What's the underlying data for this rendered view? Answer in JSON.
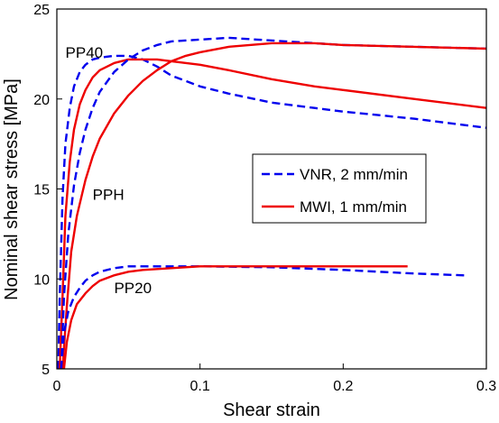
{
  "chart_data": {
    "type": "line",
    "title": "",
    "xlabel": "Shear strain",
    "ylabel": "Nominal shear stress [MPa]",
    "xlim": [
      0,
      0.3
    ],
    "ylim": [
      5,
      25
    ],
    "xticks": [
      0,
      0.1,
      0.2,
      0.3
    ],
    "xtick_labels": [
      "0",
      "0.1",
      "0.2",
      "0.3"
    ],
    "yticks": [
      5,
      10,
      15,
      20,
      25
    ],
    "ytick_labels": [
      "5",
      "10",
      "15",
      "20",
      "25"
    ],
    "grid": false,
    "legend_position": "center-right",
    "legend": [
      {
        "label": "VNR, 2 mm/min",
        "color": "#0000ee",
        "dash": "dashed"
      },
      {
        "label": "MWI, 1 mm/min",
        "color": "#ee0000",
        "dash": "solid"
      }
    ],
    "annotations": [
      {
        "text": "PP40",
        "x": 0.006,
        "y": 22.3
      },
      {
        "text": "PPH",
        "x": 0.025,
        "y": 14.4
      },
      {
        "text": "PP20",
        "x": 0.04,
        "y": 9.2
      }
    ],
    "series": [
      {
        "legend_index": 0,
        "points": [
          [
            0.001,
            5.0
          ],
          [
            0.002,
            9.0
          ],
          [
            0.004,
            14.5
          ],
          [
            0.006,
            17.5
          ],
          [
            0.009,
            19.5
          ],
          [
            0.012,
            20.7
          ],
          [
            0.016,
            21.5
          ],
          [
            0.02,
            21.9
          ],
          [
            0.025,
            22.2
          ],
          [
            0.03,
            22.3
          ],
          [
            0.04,
            22.4
          ],
          [
            0.05,
            22.4
          ],
          [
            0.06,
            22.2
          ],
          [
            0.07,
            21.8
          ],
          [
            0.08,
            21.3
          ],
          [
            0.09,
            21.0
          ],
          [
            0.1,
            20.7
          ],
          [
            0.12,
            20.3
          ],
          [
            0.15,
            19.8
          ],
          [
            0.18,
            19.5
          ],
          [
            0.2,
            19.3
          ],
          [
            0.25,
            18.9
          ],
          [
            0.3,
            18.4
          ]
        ]
      },
      {
        "legend_index": 1,
        "points": [
          [
            0.002,
            5.0
          ],
          [
            0.004,
            9.0
          ],
          [
            0.006,
            13.5
          ],
          [
            0.009,
            16.5
          ],
          [
            0.012,
            18.3
          ],
          [
            0.016,
            19.7
          ],
          [
            0.02,
            20.5
          ],
          [
            0.025,
            21.2
          ],
          [
            0.03,
            21.6
          ],
          [
            0.04,
            22.0
          ],
          [
            0.05,
            22.2
          ],
          [
            0.06,
            22.2
          ],
          [
            0.07,
            22.2
          ],
          [
            0.08,
            22.1
          ],
          [
            0.1,
            21.9
          ],
          [
            0.12,
            21.6
          ],
          [
            0.15,
            21.1
          ],
          [
            0.18,
            20.7
          ],
          [
            0.2,
            20.5
          ],
          [
            0.25,
            20.0
          ],
          [
            0.3,
            19.5
          ]
        ]
      },
      {
        "legend_index": 0,
        "points": [
          [
            0.003,
            5.0
          ],
          [
            0.005,
            9.0
          ],
          [
            0.008,
            12.5
          ],
          [
            0.012,
            15.2
          ],
          [
            0.016,
            17.0
          ],
          [
            0.02,
            18.3
          ],
          [
            0.025,
            19.5
          ],
          [
            0.03,
            20.4
          ],
          [
            0.04,
            21.5
          ],
          [
            0.05,
            22.2
          ],
          [
            0.06,
            22.7
          ],
          [
            0.07,
            23.0
          ],
          [
            0.08,
            23.2
          ],
          [
            0.1,
            23.3
          ],
          [
            0.12,
            23.4
          ],
          [
            0.14,
            23.3
          ],
          [
            0.16,
            23.2
          ],
          [
            0.2,
            23.0
          ],
          [
            0.25,
            22.9
          ],
          [
            0.3,
            22.8
          ]
        ]
      },
      {
        "legend_index": 1,
        "points": [
          [
            0.004,
            5.0
          ],
          [
            0.007,
            8.5
          ],
          [
            0.01,
            11.5
          ],
          [
            0.014,
            13.5
          ],
          [
            0.02,
            15.5
          ],
          [
            0.025,
            16.8
          ],
          [
            0.03,
            17.8
          ],
          [
            0.04,
            19.2
          ],
          [
            0.05,
            20.2
          ],
          [
            0.06,
            21.0
          ],
          [
            0.07,
            21.6
          ],
          [
            0.08,
            22.1
          ],
          [
            0.09,
            22.4
          ],
          [
            0.1,
            22.6
          ],
          [
            0.12,
            22.9
          ],
          [
            0.15,
            23.1
          ],
          [
            0.18,
            23.1
          ],
          [
            0.2,
            23.0
          ],
          [
            0.25,
            22.9
          ],
          [
            0.3,
            22.8
          ]
        ]
      },
      {
        "legend_index": 0,
        "points": [
          [
            0.003,
            5.0
          ],
          [
            0.005,
            7.0
          ],
          [
            0.008,
            8.2
          ],
          [
            0.012,
            9.0
          ],
          [
            0.016,
            9.5
          ],
          [
            0.02,
            9.9
          ],
          [
            0.025,
            10.2
          ],
          [
            0.03,
            10.4
          ],
          [
            0.04,
            10.6
          ],
          [
            0.05,
            10.7
          ],
          [
            0.06,
            10.7
          ],
          [
            0.08,
            10.7
          ],
          [
            0.1,
            10.7
          ],
          [
            0.15,
            10.65
          ],
          [
            0.2,
            10.5
          ],
          [
            0.25,
            10.3
          ],
          [
            0.285,
            10.2
          ]
        ]
      },
      {
        "legend_index": 1,
        "points": [
          [
            0.005,
            5.0
          ],
          [
            0.007,
            6.5
          ],
          [
            0.01,
            7.7
          ],
          [
            0.014,
            8.6
          ],
          [
            0.02,
            9.2
          ],
          [
            0.025,
            9.6
          ],
          [
            0.03,
            9.9
          ],
          [
            0.04,
            10.2
          ],
          [
            0.05,
            10.4
          ],
          [
            0.06,
            10.5
          ],
          [
            0.08,
            10.6
          ],
          [
            0.1,
            10.7
          ],
          [
            0.15,
            10.7
          ],
          [
            0.2,
            10.7
          ],
          [
            0.245,
            10.7
          ]
        ]
      }
    ]
  }
}
